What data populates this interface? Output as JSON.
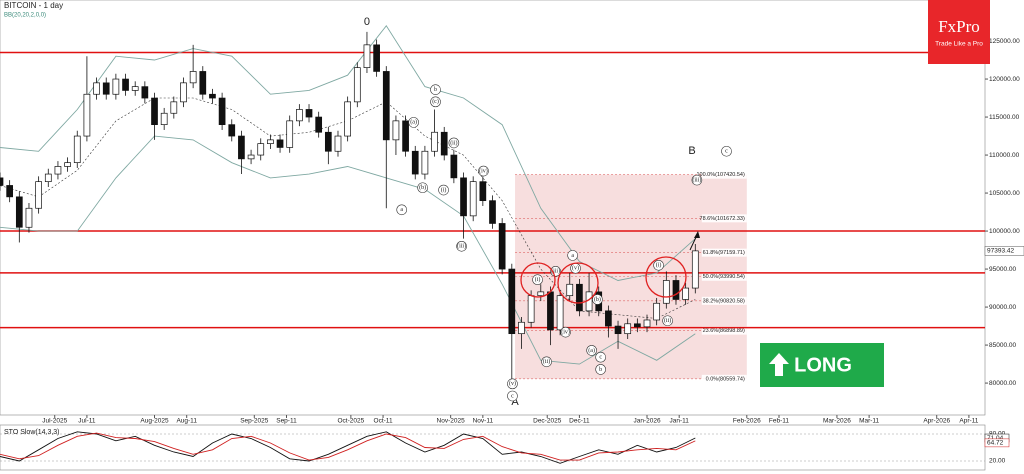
{
  "chart_data": [
    {
      "type": "candlestick",
      "title": "BITCOIN - 1 day",
      "subtitle": "BB(20,20,2,0,0)",
      "x": [
        -17,
        -14,
        -11,
        -8,
        -5,
        -2,
        1,
        4,
        7,
        10,
        13,
        16,
        19,
        22,
        25,
        28,
        31,
        34,
        37,
        40,
        43,
        46,
        49,
        52,
        55,
        58,
        61,
        64,
        67,
        70,
        73,
        76,
        79,
        82,
        85,
        88,
        91,
        94,
        97,
        100,
        103,
        106,
        109,
        112,
        115,
        118,
        121,
        124,
        127,
        130,
        133,
        136,
        139,
        142,
        145,
        148,
        151,
        154,
        157,
        160,
        163,
        166,
        169,
        172,
        175,
        178,
        181,
        184,
        187,
        190,
        193,
        196,
        199
      ],
      "open": [
        107000,
        106000,
        104500,
        100500,
        103000,
        106500,
        107500,
        108500,
        109000,
        112500,
        118000,
        119500,
        118000,
        120000,
        118500,
        119000,
        117500,
        114000,
        115500,
        117000,
        119500,
        121000,
        118000,
        117500,
        114000,
        112500,
        109500,
        110000,
        111500,
        112000,
        111000,
        114500,
        116000,
        115000,
        113000,
        110500,
        112500,
        117000,
        121500,
        124500,
        121000,
        112000,
        114500,
        110500,
        107500,
        110500,
        113000,
        110000,
        107000,
        102000,
        106500,
        104000,
        101000,
        95000,
        86500,
        88000,
        91500,
        92000,
        87000,
        91500,
        93000,
        89500,
        92000,
        89500,
        87500,
        86500,
        87800,
        87400,
        88300,
        90500,
        93500,
        91000,
        92500
      ],
      "high": [
        107700,
        106700,
        105200,
        103700,
        107200,
        108200,
        109200,
        109700,
        113200,
        123000,
        120200,
        120200,
        120700,
        120700,
        119700,
        119700,
        118200,
        116200,
        117700,
        120200,
        124500,
        121700,
        118700,
        118200,
        114700,
        113200,
        110700,
        112200,
        112700,
        112700,
        115200,
        116700,
        116700,
        115700,
        113700,
        113200,
        117700,
        122200,
        126200,
        125200,
        121700,
        115200,
        115200,
        111200,
        111200,
        116000,
        113700,
        110700,
        107700,
        107200,
        107200,
        104700,
        101700,
        95700,
        88700,
        92200,
        93000,
        92700,
        92200,
        94500,
        93700,
        94500,
        92700,
        90200,
        88200,
        88500,
        88500,
        89000,
        91200,
        94700,
        94200,
        93200,
        98300
      ],
      "low": [
        105300,
        103800,
        98500,
        99800,
        102300,
        105800,
        106800,
        107800,
        108300,
        111800,
        117300,
        117300,
        117300,
        117800,
        117800,
        116800,
        112000,
        113300,
        114800,
        116300,
        118800,
        117300,
        116800,
        113300,
        111800,
        107500,
        108800,
        109300,
        110800,
        110300,
        110300,
        113800,
        114300,
        112300,
        108800,
        109800,
        111800,
        116300,
        120800,
        120300,
        103000,
        110000,
        109800,
        106800,
        106800,
        109800,
        109300,
        106300,
        99000,
        101300,
        103300,
        100300,
        94300,
        80500,
        84500,
        87300,
        90800,
        85000,
        86300,
        90800,
        88800,
        88800,
        88800,
        86000,
        84500,
        85800,
        86700,
        86700,
        87600,
        89800,
        90300,
        90300,
        91800
      ],
      "close": [
        106000,
        104500,
        100500,
        103000,
        106500,
        107500,
        108500,
        109000,
        112500,
        118000,
        119500,
        118000,
        120000,
        118500,
        119000,
        117500,
        114000,
        115500,
        117000,
        119500,
        121000,
        118000,
        117500,
        114000,
        112500,
        109500,
        110000,
        111500,
        112000,
        111000,
        114500,
        116000,
        115000,
        113000,
        110500,
        112500,
        117000,
        121500,
        124500,
        121000,
        112000,
        114500,
        110500,
        107500,
        110500,
        113000,
        110000,
        107000,
        102000,
        106500,
        104000,
        101000,
        95000,
        86500,
        88000,
        91500,
        92000,
        87000,
        91500,
        93000,
        89500,
        92000,
        89500,
        87500,
        86500,
        87800,
        87400,
        88300,
        90500,
        93500,
        91000,
        92500,
        97393.42
      ],
      "xlim": [
        -17,
        289
      ],
      "ylim": [
        75800,
        130400
      ],
      "yticks": [
        {
          "value": 80000,
          "label": "80000.00"
        },
        {
          "value": 85000,
          "label": "85000.00"
        },
        {
          "value": 90000,
          "label": "90000.00"
        },
        {
          "value": 95000,
          "label": "95000.00"
        },
        {
          "value": 100000,
          "label": "100000.00"
        },
        {
          "value": 105000,
          "label": "105000.00"
        },
        {
          "value": 110000,
          "label": "110000.00"
        },
        {
          "value": 115000,
          "label": "115000.00"
        },
        {
          "value": 120000,
          "label": "120000.00"
        },
        {
          "value": 125000,
          "label": "125000.00"
        }
      ],
      "xticks": [
        {
          "value": 0,
          "label": "Jul-2025"
        },
        {
          "value": 10,
          "label": "Jul-11"
        },
        {
          "value": 31,
          "label": "Aug-2025"
        },
        {
          "value": 41,
          "label": "Aug-11"
        },
        {
          "value": 62,
          "label": "Sep-2025"
        },
        {
          "value": 72,
          "label": "Sep-11"
        },
        {
          "value": 92,
          "label": "Oct-2025"
        },
        {
          "value": 102,
          "label": "Oct-11"
        },
        {
          "value": 123,
          "label": "Nov-2025"
        },
        {
          "value": 133,
          "label": "Nov-11"
        },
        {
          "value": 153,
          "label": "Dec-2025"
        },
        {
          "value": 163,
          "label": "Dec-11"
        },
        {
          "value": 184,
          "label": "Jan-2026"
        },
        {
          "value": 194,
          "label": "Jan-11"
        },
        {
          "value": 215,
          "label": "Feb-2026"
        },
        {
          "value": 225,
          "label": "Feb-11"
        },
        {
          "value": 243,
          "label": "Mar-2026"
        },
        {
          "value": 253,
          "label": "Mar-11"
        },
        {
          "value": 274,
          "label": "Apr-2026"
        },
        {
          "value": 284,
          "label": "Apr-11"
        }
      ],
      "bands": {
        "color": "#7fa8a2",
        "x": [
          -17,
          -5,
          7,
          19,
          31,
          43,
          55,
          67,
          79,
          91,
          103,
          115,
          127,
          139,
          151,
          163,
          175,
          187,
          199
        ],
        "upper": [
          111000,
          110500,
          116000,
          123000,
          122500,
          124000,
          123000,
          118000,
          118500,
          120500,
          127000,
          119000,
          117500,
          114000,
          103000,
          96000,
          93500,
          94500,
          99000
        ],
        "middle": [
          106000,
          104500,
          108000,
          114500,
          117500,
          117500,
          116000,
          112500,
          113000,
          114500,
          117000,
          112500,
          110000,
          104000,
          95000,
          89500,
          89000,
          88500,
          91000
        ],
        "lower": [
          100500,
          100000,
          100000,
          107000,
          112500,
          112000,
          109000,
          107000,
          107500,
          108500,
          107000,
          105500,
          102000,
          93000,
          83000,
          82500,
          85500,
          83000,
          86500
        ]
      },
      "levels": [
        {
          "value": 123500,
          "color": "#e01010"
        },
        {
          "value": 100000,
          "color": "#e01010"
        },
        {
          "value": 94500,
          "color": "#e01010"
        },
        {
          "value": 87300,
          "color": "#e01010"
        }
      ],
      "fib": {
        "x": [
          143,
          215
        ],
        "color": "#f4d3d3",
        "levels": [
          {
            "value": 107420.54,
            "label": "100.0%(107420.54)"
          },
          {
            "value": 101672.33,
            "label": "78.6%(101672.33)"
          },
          {
            "value": 97159.71,
            "label": "61.8%(97159.71)"
          },
          {
            "value": 93990.54,
            "label": "50.0%(93990.54)"
          },
          {
            "value": 90820.58,
            "label": "38.2%(90820.58)"
          },
          {
            "value": 86898.89,
            "label": "23.6%(86898.89)"
          },
          {
            "value": 80559.74,
            "label": "0.0%(80559.74)"
          }
        ]
      },
      "annotations": [
        {
          "text": "0",
          "x": 97,
          "y": 127500
        },
        {
          "text": "A",
          "x": 143,
          "y": 77500
        },
        {
          "text": "B",
          "x": 198,
          "y": 110500
        },
        {
          "text": "c",
          "x": 208.7,
          "y": 110500
        },
        {
          "text": "(iii)",
          "x": 199.5,
          "y": 106700
        },
        {
          "text": "(v)",
          "x": 142.2,
          "y": 79900
        },
        {
          "text": "c",
          "x": 142.2,
          "y": 78300
        },
        {
          "text": "a",
          "x": 107.8,
          "y": 102800
        },
        {
          "text": "(b)",
          "x": 114.3,
          "y": 105700
        },
        {
          "text": "b",
          "x": 118.3,
          "y": 118600
        },
        {
          "text": "(c)",
          "x": 118.3,
          "y": 117000
        },
        {
          "text": "(a)",
          "x": 111.5,
          "y": 114300
        },
        {
          "text": "(i)",
          "x": 120.8,
          "y": 105400
        },
        {
          "text": "(ii)",
          "x": 124,
          "y": 111600
        },
        {
          "text": "(iii)",
          "x": 126.4,
          "y": 98000
        },
        {
          "text": "(iv)",
          "x": 133.2,
          "y": 107900
        },
        {
          "text": "(i)",
          "x": 150,
          "y": 93600
        },
        {
          "text": "(ii)",
          "x": 152.8,
          "y": 82800
        },
        {
          "text": "(iii)",
          "x": 155.6,
          "y": 94700
        },
        {
          "text": "a",
          "x": 160.9,
          "y": 96800
        },
        {
          "text": "(v)",
          "x": 161.8,
          "y": 95100
        },
        {
          "text": "(iv)",
          "x": 158.7,
          "y": 86700
        },
        {
          "text": "(b)",
          "x": 168.6,
          "y": 91000
        },
        {
          "text": "(a)",
          "x": 166.8,
          "y": 84300
        },
        {
          "text": "c",
          "x": 169.6,
          "y": 83400
        },
        {
          "text": "b",
          "x": 169.6,
          "y": 81800
        },
        {
          "text": "(i)",
          "x": 187.6,
          "y": 95500
        },
        {
          "text": "(ii)",
          "x": 190.4,
          "y": 88200
        }
      ]
    },
    {
      "type": "line",
      "title": "STO Slow(14,3,3)",
      "x": [
        -17,
        -11,
        -5,
        1,
        7,
        13,
        19,
        25,
        31,
        37,
        43,
        49,
        55,
        61,
        67,
        73,
        79,
        85,
        91,
        97,
        103,
        109,
        115,
        121,
        127,
        133,
        139,
        145,
        151,
        157,
        163,
        169,
        175,
        181,
        187,
        193,
        199
      ],
      "series": [
        {
          "color": "#111111",
          "values": [
            30,
            20,
            45,
            70,
            85,
            80,
            65,
            75,
            55,
            40,
            30,
            60,
            80,
            70,
            50,
            25,
            20,
            35,
            55,
            75,
            85,
            60,
            40,
            55,
            80,
            70,
            35,
            40,
            30,
            15,
            30,
            45,
            35,
            55,
            40,
            50,
            71.04
          ]
        },
        {
          "color": "#d02020",
          "values": [
            35,
            25,
            32,
            55,
            75,
            82,
            72,
            70,
            63,
            48,
            35,
            45,
            70,
            75,
            60,
            38,
            22,
            28,
            45,
            65,
            80,
            72,
            50,
            48,
            68,
            75,
            52,
            38,
            35,
            22,
            22,
            38,
            40,
            45,
            48,
            45,
            64.72
          ]
        }
      ],
      "xlim": [
        -17,
        289
      ],
      "ylim": [
        0,
        100
      ],
      "yticks": [
        {
          "value": 20,
          "label": "20.00"
        },
        {
          "value": 80,
          "label": "80.00"
        }
      ]
    }
  ],
  "logo": {
    "brand": "FxPro",
    "tagline": "Trade Like a Pro"
  },
  "signal": "LONG"
}
